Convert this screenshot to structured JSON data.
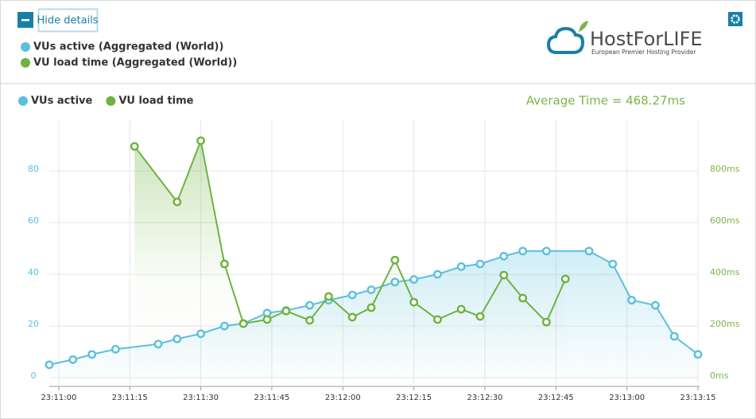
{
  "header": {
    "button_label": "Hide details",
    "legend": [
      {
        "label": "VUs active (Aggregated (World))",
        "color": "#5bc0de"
      },
      {
        "label": "VU load time (Aggregated (World))",
        "color": "#6db33f"
      }
    ]
  },
  "logo": {
    "name": "HostForLIFE",
    "tagline": "European Premier Hosting Provider"
  },
  "chart_data": {
    "type": "line",
    "annotation": "Average Time = 468.27ms",
    "xlim": [
      "23:10:58",
      "23:13:15"
    ],
    "xticks": [
      "23:11:00",
      "23:11:15",
      "23:11:30",
      "23:11:45",
      "23:12:00",
      "23:12:15",
      "23:12:30",
      "23:12:45",
      "23:13:00",
      "23:13:15"
    ],
    "ylim": [
      0,
      100
    ],
    "yticks": [
      0,
      20,
      40,
      60,
      80
    ],
    "y2lim": [
      0,
      1000
    ],
    "y2ticks": [
      {
        "value": 0,
        "label": "0ms"
      },
      {
        "value": 200,
        "label": "200ms"
      },
      {
        "value": 400,
        "label": "400ms"
      },
      {
        "value": 600,
        "label": "600ms"
      },
      {
        "value": 800,
        "label": "800ms"
      }
    ],
    "grid": true,
    "series": [
      {
        "name": "VUs active",
        "color": "#5bc0de",
        "x": [
          "23:10:58",
          "23:11:03",
          "23:11:07",
          "23:11:12",
          "23:11:21",
          "23:11:25",
          "23:11:30",
          "23:11:35",
          "23:11:39",
          "23:11:44",
          "23:11:48",
          "23:11:53",
          "23:11:57",
          "23:12:02",
          "23:12:06",
          "23:12:11",
          "23:12:15",
          "23:12:20",
          "23:12:25",
          "23:12:29",
          "23:12:34",
          "23:12:38",
          "23:12:43",
          "23:12:52",
          "23:12:57",
          "23:13:01",
          "23:13:06",
          "23:13:10",
          "23:13:15"
        ],
        "values": [
          5,
          7,
          9,
          11,
          13,
          15,
          17,
          20,
          21,
          25,
          26,
          28,
          30,
          32,
          34,
          37,
          38,
          40,
          43,
          44,
          47,
          49,
          49,
          49,
          44,
          30,
          28,
          16,
          9
        ]
      },
      {
        "name": "VU load time",
        "color": "#6db33f",
        "axis": "y2",
        "x": [
          "23:11:16",
          "23:11:25",
          "23:11:30",
          "23:11:35",
          "23:11:39",
          "23:11:44",
          "23:11:48",
          "23:11:53",
          "23:11:57",
          "23:12:02",
          "23:12:06",
          "23:12:11",
          "23:12:15",
          "23:12:20",
          "23:12:25",
          "23:12:29",
          "23:12:34",
          "23:12:38",
          "23:12:43",
          "23:12:47"
        ],
        "values": [
          895,
          680,
          917,
          440,
          209,
          225,
          258,
          222,
          314,
          234,
          271,
          455,
          292,
          225,
          265,
          237,
          397,
          308,
          215,
          382
        ]
      }
    ]
  }
}
